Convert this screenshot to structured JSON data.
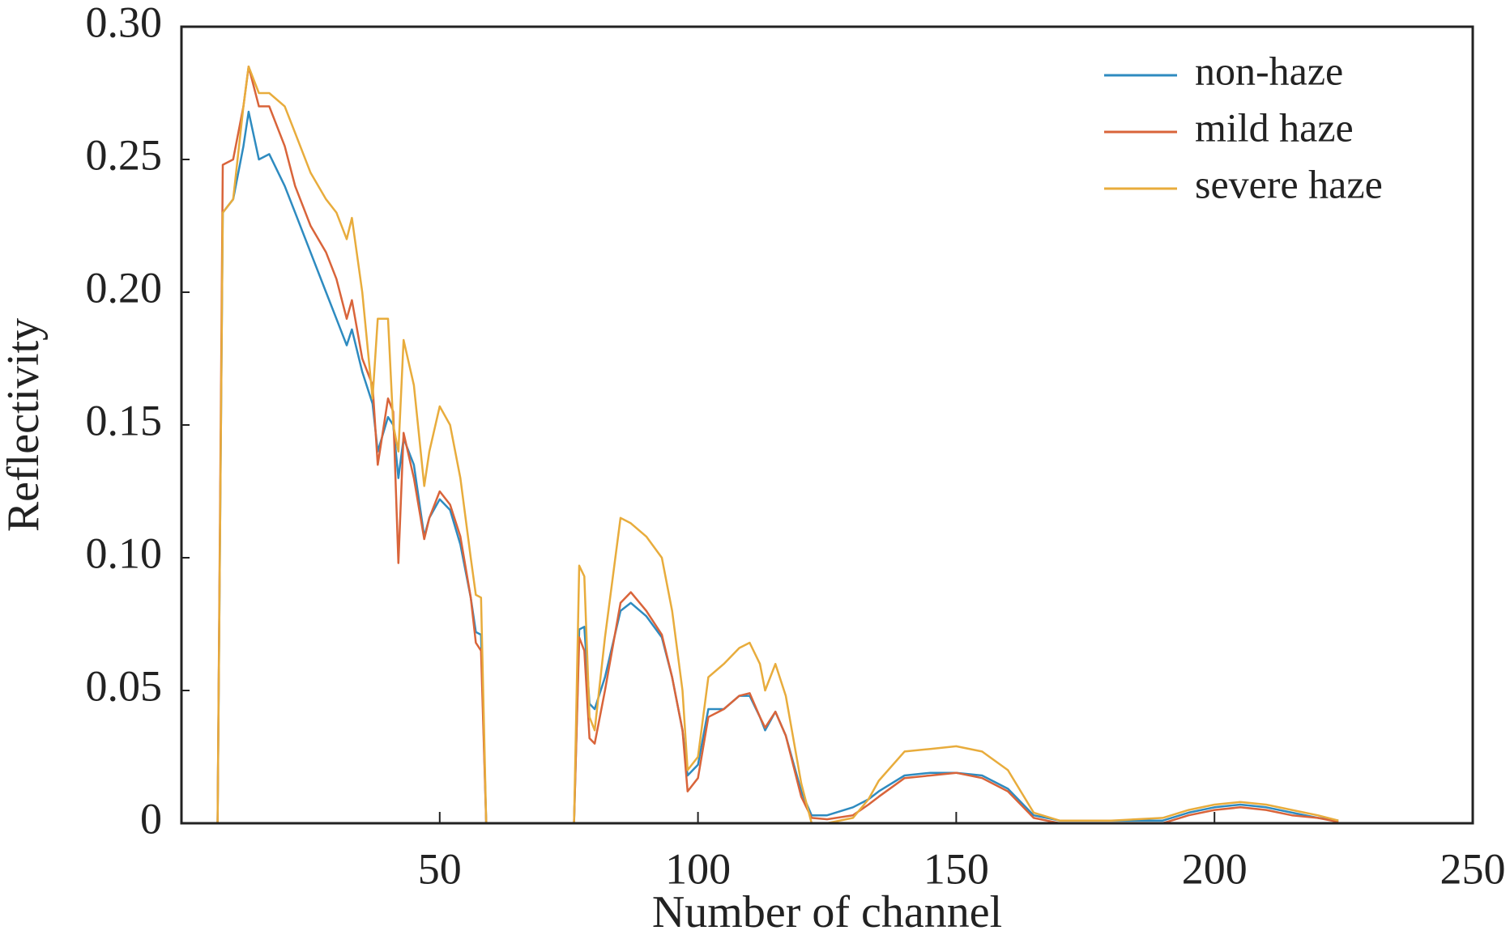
{
  "chart_data": {
    "type": "line",
    "xlabel": "Number of channel",
    "ylabel": "Reflectivity",
    "x": [
      7,
      8,
      10,
      12,
      13,
      15,
      17,
      20,
      22,
      25,
      28,
      30,
      32,
      33,
      35,
      37,
      38,
      40,
      41,
      42,
      43,
      45,
      47,
      48,
      50,
      52,
      54,
      56,
      57,
      58,
      59,
      68,
      76,
      77,
      78,
      79,
      80,
      82,
      85,
      87,
      90,
      93,
      95,
      97,
      98,
      100,
      102,
      105,
      108,
      110,
      112,
      113,
      115,
      117,
      120,
      122,
      125,
      130,
      133,
      135,
      140,
      145,
      150,
      155,
      160,
      165,
      170,
      180,
      190,
      195,
      200,
      205,
      210,
      215,
      220,
      224
    ],
    "series": [
      {
        "name": "non-haze",
        "color": "#2e8bc0",
        "values": [
          0,
          0.23,
          0.235,
          0.255,
          0.268,
          0.25,
          0.252,
          0.24,
          0.23,
          0.215,
          0.2,
          0.19,
          0.18,
          0.186,
          0.17,
          0.158,
          0.14,
          0.153,
          0.15,
          0.13,
          0.145,
          0.135,
          0.108,
          0.115,
          0.122,
          0.118,
          0.105,
          0.085,
          0.072,
          0.071,
          0,
          null,
          0,
          0.073,
          0.074,
          0.045,
          0.043,
          0.055,
          0.08,
          0.083,
          0.078,
          0.07,
          0.055,
          0.035,
          0.018,
          0.022,
          0.043,
          0.043,
          0.048,
          0.048,
          0.04,
          0.035,
          0.042,
          0.033,
          0.012,
          0.003,
          0.003,
          0.006,
          0.009,
          0.012,
          0.018,
          0.019,
          0.019,
          0.018,
          0.013,
          0.003,
          0.001,
          0.001,
          0.001,
          0.004,
          0.006,
          0.007,
          0.006,
          0.004,
          0.002,
          0.001
        ]
      },
      {
        "name": "mild haze",
        "color": "#d9643a",
        "values": [
          0,
          0.248,
          0.25,
          0.27,
          0.285,
          0.27,
          0.27,
          0.255,
          0.24,
          0.225,
          0.215,
          0.205,
          0.19,
          0.197,
          0.175,
          0.165,
          0.135,
          0.16,
          0.155,
          0.098,
          0.147,
          0.13,
          0.107,
          0.115,
          0.125,
          0.12,
          0.108,
          0.085,
          0.068,
          0.065,
          0,
          null,
          0,
          0.07,
          0.065,
          0.032,
          0.03,
          0.05,
          0.083,
          0.087,
          0.08,
          0.071,
          0.055,
          0.035,
          0.012,
          0.017,
          0.04,
          0.043,
          0.048,
          0.049,
          0.04,
          0.036,
          0.042,
          0.033,
          0.01,
          0.002,
          0.0015,
          0.003,
          0.007,
          0.01,
          0.017,
          0.018,
          0.019,
          0.017,
          0.012,
          0.002,
          0,
          0,
          0,
          0.003,
          0.005,
          0.006,
          0.005,
          0.003,
          0.002,
          0.0005
        ]
      },
      {
        "name": "severe haze",
        "color": "#e8ac3c",
        "values": [
          0,
          0.23,
          0.235,
          0.27,
          0.285,
          0.275,
          0.275,
          0.27,
          0.26,
          0.245,
          0.235,
          0.23,
          0.22,
          0.228,
          0.2,
          0.16,
          0.19,
          0.19,
          0.15,
          0.14,
          0.182,
          0.165,
          0.127,
          0.14,
          0.157,
          0.15,
          0.13,
          0.1,
          0.086,
          0.085,
          0,
          null,
          0,
          0.097,
          0.093,
          0.04,
          0.035,
          0.07,
          0.115,
          0.113,
          0.108,
          0.1,
          0.08,
          0.05,
          0.02,
          0.025,
          0.055,
          0.06,
          0.066,
          0.068,
          0.06,
          0.05,
          0.06,
          0.048,
          0.015,
          0,
          0,
          0.002,
          0.009,
          0.016,
          0.027,
          0.028,
          0.029,
          0.027,
          0.02,
          0.004,
          0.001,
          0.001,
          0.002,
          0.005,
          0.007,
          0.008,
          0.007,
          0.005,
          0.003,
          0.001
        ]
      }
    ],
    "xlim": [
      0,
      250
    ],
    "xticks": [
      50,
      100,
      150,
      200,
      250
    ],
    "ylim": [
      0,
      0.3
    ],
    "yticks": [
      0,
      0.05,
      {
        "value": 0.1,
        "label": "0.10"
      },
      0.15,
      {
        "value": 0.2,
        "label": "0.20"
      },
      0.25,
      {
        "value": 0.3,
        "label": "0.30"
      }
    ],
    "legend": "upper right",
    "grid": false
  }
}
